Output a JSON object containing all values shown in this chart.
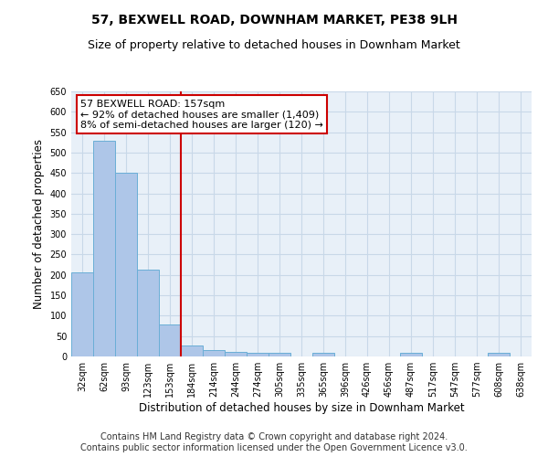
{
  "title": "57, BEXWELL ROAD, DOWNHAM MARKET, PE38 9LH",
  "subtitle": "Size of property relative to detached houses in Downham Market",
  "xlabel": "Distribution of detached houses by size in Downham Market",
  "ylabel": "Number of detached properties",
  "categories": [
    "32sqm",
    "62sqm",
    "93sqm",
    "123sqm",
    "153sqm",
    "184sqm",
    "214sqm",
    "244sqm",
    "274sqm",
    "305sqm",
    "335sqm",
    "365sqm",
    "396sqm",
    "426sqm",
    "456sqm",
    "487sqm",
    "517sqm",
    "547sqm",
    "577sqm",
    "608sqm",
    "638sqm"
  ],
  "values": [
    207,
    530,
    450,
    212,
    78,
    27,
    15,
    12,
    8,
    8,
    0,
    8,
    0,
    0,
    0,
    8,
    0,
    0,
    0,
    8,
    0
  ],
  "bar_color": "#aec6e8",
  "bar_edge_color": "#6aaed6",
  "annotation_text": "57 BEXWELL ROAD: 157sqm\n← 92% of detached houses are smaller (1,409)\n8% of semi-detached houses are larger (120) →",
  "annotation_box_color": "#ffffff",
  "annotation_box_edge": "#cc0000",
  "vline_color": "#cc0000",
  "ylim": [
    0,
    650
  ],
  "yticks": [
    0,
    50,
    100,
    150,
    200,
    250,
    300,
    350,
    400,
    450,
    500,
    550,
    600,
    650
  ],
  "grid_color": "#c8d8e8",
  "bg_color": "#e8f0f8",
  "footer": "Contains HM Land Registry data © Crown copyright and database right 2024.\nContains public sector information licensed under the Open Government Licence v3.0.",
  "title_fontsize": 10,
  "subtitle_fontsize": 9,
  "xlabel_fontsize": 8.5,
  "ylabel_fontsize": 8.5,
  "footer_fontsize": 7,
  "tick_fontsize": 7,
  "annotation_fontsize": 8
}
